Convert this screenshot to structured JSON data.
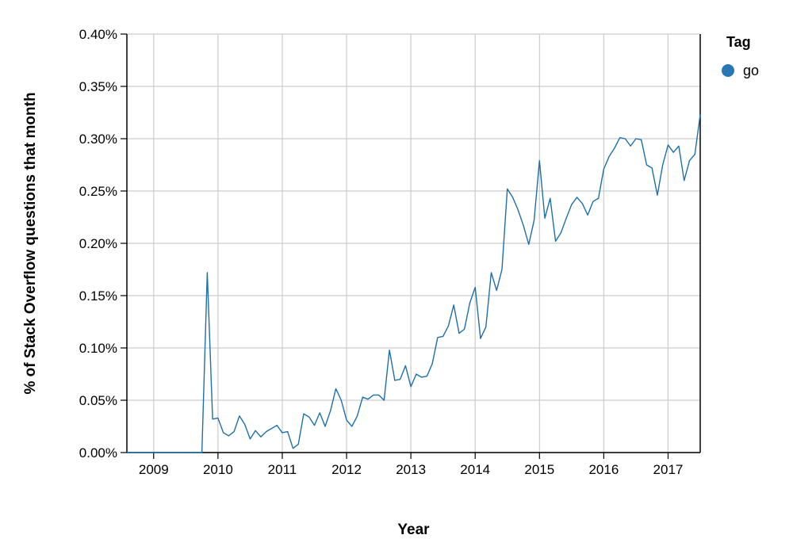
{
  "chart_data": {
    "type": "line",
    "title": "",
    "xlabel": "Year",
    "ylabel": "% of Stack Overflow questions that month",
    "x_ticks": [
      "2009",
      "2010",
      "2011",
      "2012",
      "2013",
      "2014",
      "2015",
      "2016",
      "2017"
    ],
    "y_ticks": [
      "0.00%",
      "0.05%",
      "0.10%",
      "0.15%",
      "0.20%",
      "0.25%",
      "0.30%",
      "0.35%",
      "0.40%"
    ],
    "xlim": [
      "2008-08",
      "2017-07"
    ],
    "ylim": [
      0,
      0.4
    ],
    "y_unit": "%",
    "grid": true,
    "legend": {
      "title": "Tag",
      "position": "right"
    },
    "series": [
      {
        "name": "go",
        "color": "#1f6fa8",
        "legend_color": "#2878b5",
        "points": [
          [
            "2008-08",
            0
          ],
          [
            "2008-09",
            0
          ],
          [
            "2008-10",
            0
          ],
          [
            "2008-11",
            0
          ],
          [
            "2008-12",
            0
          ],
          [
            "2009-01",
            0
          ],
          [
            "2009-02",
            0
          ],
          [
            "2009-03",
            0
          ],
          [
            "2009-04",
            0
          ],
          [
            "2009-05",
            0
          ],
          [
            "2009-06",
            0
          ],
          [
            "2009-07",
            0
          ],
          [
            "2009-08",
            0
          ],
          [
            "2009-09",
            0
          ],
          [
            "2009-10",
            0
          ],
          [
            "2009-11",
            0.172
          ],
          [
            "2009-12",
            0.032
          ],
          [
            "2010-01",
            0.033
          ],
          [
            "2010-02",
            0.019
          ],
          [
            "2010-03",
            0.016
          ],
          [
            "2010-04",
            0.02
          ],
          [
            "2010-05",
            0.035
          ],
          [
            "2010-06",
            0.027
          ],
          [
            "2010-07",
            0.013
          ],
          [
            "2010-08",
            0.021
          ],
          [
            "2010-09",
            0.015
          ],
          [
            "2010-10",
            0.02
          ],
          [
            "2010-11",
            0.023
          ],
          [
            "2010-12",
            0.026
          ],
          [
            "2011-01",
            0.019
          ],
          [
            "2011-02",
            0.02
          ],
          [
            "2011-03",
            0.004
          ],
          [
            "2011-04",
            0.008
          ],
          [
            "2011-05",
            0.037
          ],
          [
            "2011-06",
            0.034
          ],
          [
            "2011-07",
            0.026
          ],
          [
            "2011-08",
            0.038
          ],
          [
            "2011-09",
            0.025
          ],
          [
            "2011-10",
            0.04
          ],
          [
            "2011-11",
            0.061
          ],
          [
            "2011-12",
            0.05
          ],
          [
            "2012-01",
            0.031
          ],
          [
            "2012-02",
            0.025
          ],
          [
            "2012-03",
            0.035
          ],
          [
            "2012-04",
            0.053
          ],
          [
            "2012-05",
            0.051
          ],
          [
            "2012-06",
            0.055
          ],
          [
            "2012-07",
            0.055
          ],
          [
            "2012-08",
            0.05
          ],
          [
            "2012-09",
            0.098
          ],
          [
            "2012-10",
            0.069
          ],
          [
            "2012-11",
            0.07
          ],
          [
            "2012-12",
            0.083
          ],
          [
            "2013-01",
            0.063
          ],
          [
            "2013-02",
            0.075
          ],
          [
            "2013-03",
            0.072
          ],
          [
            "2013-04",
            0.073
          ],
          [
            "2013-05",
            0.085
          ],
          [
            "2013-06",
            0.11
          ],
          [
            "2013-07",
            0.111
          ],
          [
            "2013-08",
            0.121
          ],
          [
            "2013-09",
            0.141
          ],
          [
            "2013-10",
            0.114
          ],
          [
            "2013-11",
            0.118
          ],
          [
            "2013-12",
            0.143
          ],
          [
            "2014-01",
            0.158
          ],
          [
            "2014-02",
            0.109
          ],
          [
            "2014-03",
            0.12
          ],
          [
            "2014-04",
            0.172
          ],
          [
            "2014-05",
            0.155
          ],
          [
            "2014-06",
            0.175
          ],
          [
            "2014-07",
            0.252
          ],
          [
            "2014-08",
            0.244
          ],
          [
            "2014-09",
            0.232
          ],
          [
            "2014-10",
            0.217
          ],
          [
            "2014-11",
            0.199
          ],
          [
            "2014-12",
            0.222
          ],
          [
            "2015-01",
            0.279
          ],
          [
            "2015-02",
            0.224
          ],
          [
            "2015-03",
            0.243
          ],
          [
            "2015-04",
            0.202
          ],
          [
            "2015-05",
            0.21
          ],
          [
            "2015-06",
            0.224
          ],
          [
            "2015-07",
            0.237
          ],
          [
            "2015-08",
            0.244
          ],
          [
            "2015-09",
            0.238
          ],
          [
            "2015-10",
            0.227
          ],
          [
            "2015-11",
            0.24
          ],
          [
            "2015-12",
            0.243
          ],
          [
            "2016-01",
            0.271
          ],
          [
            "2016-02",
            0.283
          ],
          [
            "2016-03",
            0.291
          ],
          [
            "2016-04",
            0.301
          ],
          [
            "2016-05",
            0.3
          ],
          [
            "2016-06",
            0.293
          ],
          [
            "2016-07",
            0.3
          ],
          [
            "2016-08",
            0.299
          ],
          [
            "2016-09",
            0.275
          ],
          [
            "2016-10",
            0.272
          ],
          [
            "2016-11",
            0.246
          ],
          [
            "2016-12",
            0.275
          ],
          [
            "2017-01",
            0.294
          ],
          [
            "2017-02",
            0.287
          ],
          [
            "2017-03",
            0.293
          ],
          [
            "2017-04",
            0.26
          ],
          [
            "2017-05",
            0.279
          ],
          [
            "2017-06",
            0.285
          ],
          [
            "2017-07",
            0.323
          ]
        ]
      }
    ]
  }
}
